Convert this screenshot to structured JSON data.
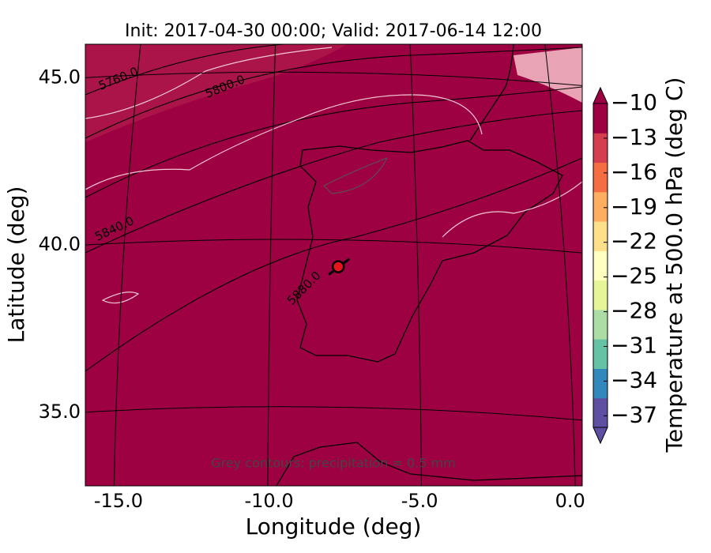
{
  "chart_data": {
    "type": "map",
    "title": "Init: 2017-04-30 00:00; Valid: 2017-06-14 12:00",
    "x_label": "Longitude (deg)",
    "y_label": "Latitude (deg)",
    "xlim": [
      -16.1,
      0.4
    ],
    "ylim": [
      32.8,
      46.0
    ],
    "xticks": [
      {
        "value": -15,
        "label": "-15.0"
      },
      {
        "value": -10,
        "label": "-10.0"
      },
      {
        "value": -5,
        "label": "-5.0"
      },
      {
        "value": 0,
        "label": "0.0"
      }
    ],
    "yticks": [
      {
        "value": 35,
        "label": "35.0"
      },
      {
        "value": 40,
        "label": "40.0"
      },
      {
        "value": 45,
        "label": "45.0"
      }
    ],
    "contour_labels": [
      "5760.0",
      "5800.0",
      "5840.0",
      "5880.0"
    ],
    "annotation": "Grey contours: precipitation = 0.5 mm",
    "marker": {
      "lon": -7.7,
      "lat": 39.35,
      "color": "#e8141c"
    },
    "colorbar": {
      "label": "Temperature at 500.0 hPa (deg C)",
      "lim": [
        -38,
        -10
      ],
      "ticks": [
        {
          "value": -10,
          "label": "−10"
        },
        {
          "value": -13,
          "label": "−13"
        },
        {
          "value": -16,
          "label": "−16"
        },
        {
          "value": -19,
          "label": "−19"
        },
        {
          "value": -22,
          "label": "−22"
        },
        {
          "value": -25,
          "label": "−25"
        },
        {
          "value": -28,
          "label": "−28"
        },
        {
          "value": -31,
          "label": "−31"
        },
        {
          "value": -34,
          "label": "−34"
        },
        {
          "value": -37,
          "label": "−37"
        }
      ],
      "colors": [
        "#5e4fa2",
        "#3288bd",
        "#66c2a5",
        "#abdda4",
        "#e6f598",
        "#ffffbf",
        "#fee08b",
        "#fdae61",
        "#f46d43",
        "#d53e4f",
        "#9e0142"
      ]
    }
  }
}
